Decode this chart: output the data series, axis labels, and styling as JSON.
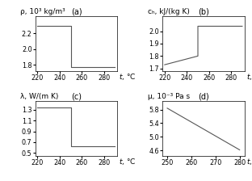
{
  "panel_a": {
    "label": "(a)",
    "ylabel_line1": "ρ, 10³ kg/m³",
    "xlim": [
      218,
      292
    ],
    "ylim": [
      1.72,
      2.42
    ],
    "xticks": [
      220,
      240,
      260,
      280
    ],
    "yticks": [
      1.8,
      2.0,
      2.2
    ],
    "x": [
      220,
      250,
      250,
      290
    ],
    "y": [
      2.3,
      2.3,
      1.77,
      1.77
    ]
  },
  "panel_b": {
    "label": "(b)",
    "ylabel_line1": "cₕ, kJ/(kg K)",
    "xlim": [
      218,
      292
    ],
    "ylim": [
      1.68,
      2.12
    ],
    "xticks": [
      220,
      240,
      260,
      280
    ],
    "yticks": [
      1.7,
      1.8,
      1.9,
      2.0
    ],
    "x": [
      220,
      250,
      250,
      290
    ],
    "y": [
      1.73,
      1.8,
      2.04,
      2.04
    ]
  },
  "panel_c": {
    "label": "(c)",
    "ylabel_line1": "λ, W/(m K)",
    "xlim": [
      218,
      292
    ],
    "ylim": [
      0.45,
      1.46
    ],
    "xticks": [
      220,
      240,
      260,
      280
    ],
    "yticks": [
      0.5,
      0.7,
      0.9,
      1.1,
      1.3
    ],
    "x": [
      220,
      250,
      250,
      290
    ],
    "y": [
      1.34,
      1.34,
      0.62,
      0.62
    ]
  },
  "panel_d": {
    "label": "(d)",
    "ylabel_line1": "μ, 10⁻³ Pa s",
    "xlim": [
      248,
      282
    ],
    "ylim": [
      4.45,
      6.05
    ],
    "xticks": [
      250,
      260,
      270,
      280
    ],
    "yticks": [
      4.6,
      5.0,
      5.4,
      5.8
    ],
    "x": [
      250,
      280
    ],
    "y": [
      5.84,
      4.62
    ]
  },
  "line_color": "#555555",
  "line_width": 0.8,
  "tick_fontsize": 5.8,
  "label_fontsize": 6.5,
  "panel_label_fontsize": 7.0
}
